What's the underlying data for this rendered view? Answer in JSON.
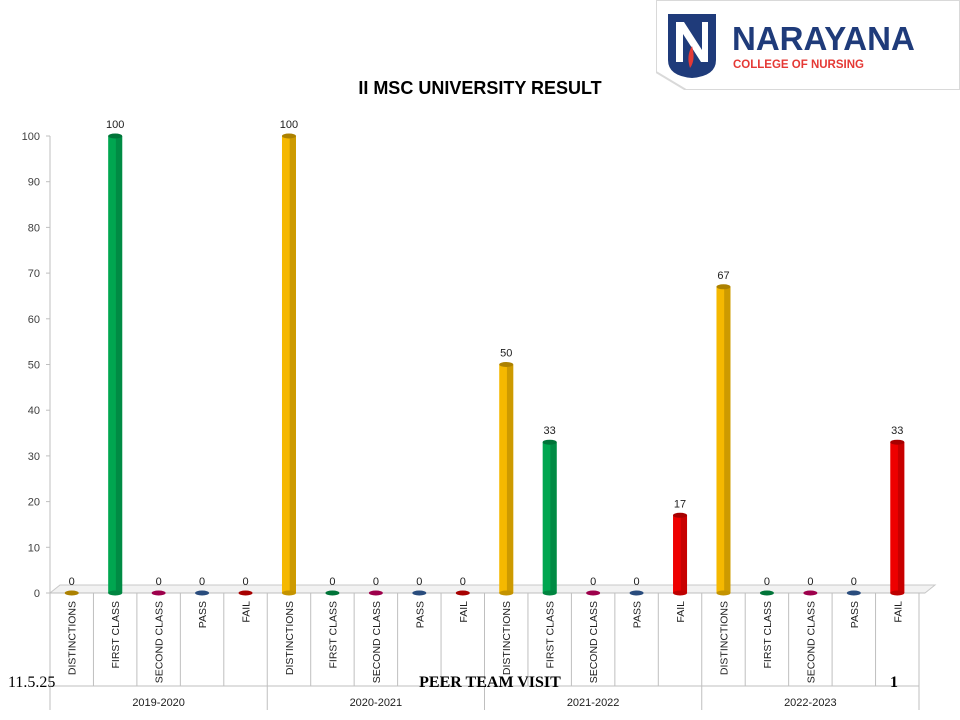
{
  "logo": {
    "name": "NARAYANA",
    "subtitle": "COLLEGE OF NURSING",
    "brand_color": "#1f3b7a",
    "accent_color": "#e53935"
  },
  "footer": {
    "date": "11.5.25",
    "center": "PEER TEAM VISIT",
    "page": "1"
  },
  "chart_data": {
    "type": "bar",
    "title": "II MSC UNIVERSITY RESULT",
    "ylim": [
      0,
      100
    ],
    "yticks": [
      0,
      10,
      20,
      30,
      40,
      50,
      60,
      70,
      80,
      90,
      100
    ],
    "grid": false,
    "categories": [
      "DISTINCTIONS",
      "FIRST CLASS",
      "SECOND CLASS",
      "PASS",
      "FAIL"
    ],
    "category_colors": {
      "DISTINCTIONS": "#f5b800",
      "FIRST CLASS": "#00a650",
      "SECOND CLASS": "#e0006b",
      "PASS": "#3b6db3",
      "FAIL": "#ee0000"
    },
    "groups": [
      {
        "label": "2019-2020",
        "values": [
          0,
          100,
          0,
          0,
          0
        ]
      },
      {
        "label": "2020-2021",
        "values": [
          100,
          0,
          0,
          0,
          0
        ]
      },
      {
        "label": "2021-2022",
        "values": [
          50,
          33,
          0,
          0,
          17
        ]
      },
      {
        "label": "2022-2023",
        "values": [
          67,
          0,
          0,
          0,
          33
        ]
      }
    ]
  }
}
